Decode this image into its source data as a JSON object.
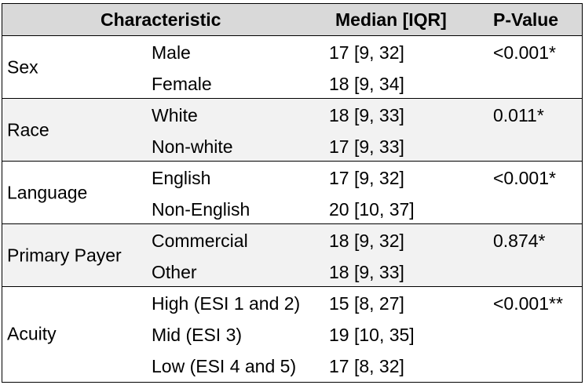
{
  "header": {
    "characteristic": "Characteristic",
    "median": "Median [IQR]",
    "pvalue": "P-Value"
  },
  "groups": [
    {
      "label": "Sex",
      "pvalue": "<0.001*",
      "rows": [
        {
          "sub": "Male",
          "median": "17 [9, 32]"
        },
        {
          "sub": "Female",
          "median": "18 [9, 34]"
        }
      ]
    },
    {
      "label": "Race",
      "pvalue": "0.011*",
      "rows": [
        {
          "sub": "White",
          "median": "18 [9, 33]"
        },
        {
          "sub": "Non-white",
          "median": "17 [9, 33]"
        }
      ]
    },
    {
      "label": "Language",
      "pvalue": "<0.001*",
      "rows": [
        {
          "sub": "English",
          "median": "17 [9, 32]"
        },
        {
          "sub": "Non-English",
          "median": "20 [10, 37]"
        }
      ]
    },
    {
      "label": "Primary Payer",
      "pvalue": "0.874*",
      "rows": [
        {
          "sub": "Commercial",
          "median": "18 [9, 32]"
        },
        {
          "sub": "Other",
          "median": "18 [9, 33]"
        }
      ]
    },
    {
      "label": "Acuity",
      "pvalue": "<0.001**",
      "rows": [
        {
          "sub": "High (ESI 1 and 2)",
          "median": "15 [8, 27]"
        },
        {
          "sub": "Mid (ESI 3)",
          "median": "19 [10, 35]"
        },
        {
          "sub": "Low (ESI 4 and 5)",
          "median": "17 [8, 32]"
        }
      ]
    }
  ],
  "colors": {
    "header_bg": "#d9d9d9",
    "shaded_row_bg": "#f2f2f2",
    "border": "#000000"
  }
}
